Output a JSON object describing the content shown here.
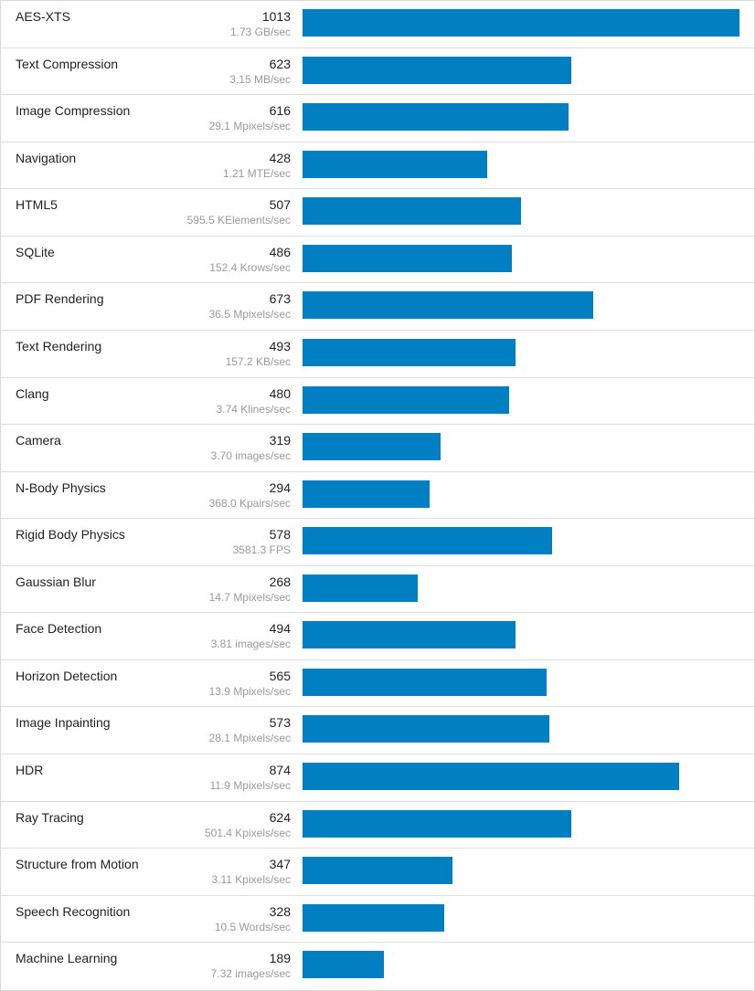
{
  "colors": {
    "bar": "#0080c3",
    "border": "#dedede",
    "label": "#222222",
    "subtext": "#9a9a9a"
  },
  "max_score": 1013,
  "benchmarks": [
    {
      "name": "AES-XTS",
      "score": "1013",
      "rate": "1.73 GB/sec",
      "value": 1013
    },
    {
      "name": "Text Compression",
      "score": "623",
      "rate": "3.15 MB/sec",
      "value": 623
    },
    {
      "name": "Image Compression",
      "score": "616",
      "rate": "29.1 Mpixels/sec",
      "value": 616
    },
    {
      "name": "Navigation",
      "score": "428",
      "rate": "1.21 MTE/sec",
      "value": 428
    },
    {
      "name": "HTML5",
      "score": "507",
      "rate": "595.5 KElements/sec",
      "value": 507
    },
    {
      "name": "SQLite",
      "score": "486",
      "rate": "152.4 Krows/sec",
      "value": 486
    },
    {
      "name": "PDF Rendering",
      "score": "673",
      "rate": "36.5 Mpixels/sec",
      "value": 673
    },
    {
      "name": "Text Rendering",
      "score": "493",
      "rate": "157.2 KB/sec",
      "value": 493
    },
    {
      "name": "Clang",
      "score": "480",
      "rate": "3.74 Klines/sec",
      "value": 480
    },
    {
      "name": "Camera",
      "score": "319",
      "rate": "3.70 images/sec",
      "value": 319
    },
    {
      "name": "N-Body Physics",
      "score": "294",
      "rate": "368.0 Kpairs/sec",
      "value": 294
    },
    {
      "name": "Rigid Body Physics",
      "score": "578",
      "rate": "3581.3 FPS",
      "value": 578
    },
    {
      "name": "Gaussian Blur",
      "score": "268",
      "rate": "14.7 Mpixels/sec",
      "value": 268
    },
    {
      "name": "Face Detection",
      "score": "494",
      "rate": "3.81 images/sec",
      "value": 494
    },
    {
      "name": "Horizon Detection",
      "score": "565",
      "rate": "13.9 Mpixels/sec",
      "value": 565
    },
    {
      "name": "Image Inpainting",
      "score": "573",
      "rate": "28.1 Mpixels/sec",
      "value": 573
    },
    {
      "name": "HDR",
      "score": "874",
      "rate": "11.9 Mpixels/sec",
      "value": 874
    },
    {
      "name": "Ray Tracing",
      "score": "624",
      "rate": "501.4 Kpixels/sec",
      "value": 624
    },
    {
      "name": "Structure from Motion",
      "score": "347",
      "rate": "3.11 Kpixels/sec",
      "value": 347
    },
    {
      "name": "Speech Recognition",
      "score": "328",
      "rate": "10.5 Words/sec",
      "value": 328
    },
    {
      "name": "Machine Learning",
      "score": "189",
      "rate": "7.32 images/sec",
      "value": 189
    }
  ]
}
